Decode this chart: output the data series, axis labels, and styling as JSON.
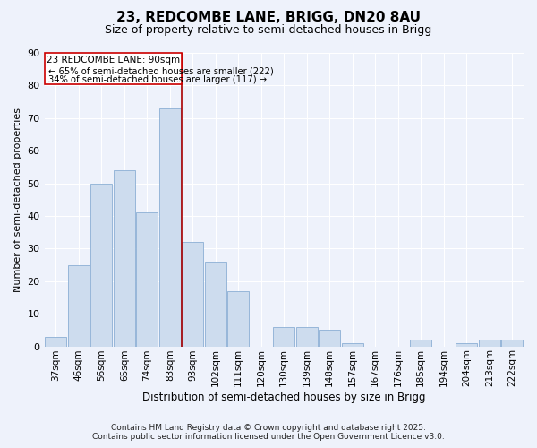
{
  "title": "23, REDCOMBE LANE, BRIGG, DN20 8AU",
  "subtitle": "Size of property relative to semi-detached houses in Brigg",
  "xlabel": "Distribution of semi-detached houses by size in Brigg",
  "ylabel": "Number of semi-detached properties",
  "categories": [
    "37sqm",
    "46sqm",
    "56sqm",
    "65sqm",
    "74sqm",
    "83sqm",
    "93sqm",
    "102sqm",
    "111sqm",
    "120sqm",
    "130sqm",
    "139sqm",
    "148sqm",
    "157sqm",
    "167sqm",
    "176sqm",
    "185sqm",
    "194sqm",
    "204sqm",
    "213sqm",
    "222sqm"
  ],
  "values": [
    3,
    25,
    50,
    54,
    41,
    73,
    32,
    26,
    17,
    0,
    6,
    6,
    5,
    1,
    0,
    0,
    2,
    0,
    1,
    2,
    2
  ],
  "bar_color": "#cddcee",
  "bar_edge_color": "#8bafd4",
  "highlight_index": 6,
  "highlight_line_color": "#aa0000",
  "annotation_box_color": "#ffffff",
  "annotation_box_edge": "#cc0000",
  "annotation_title": "23 REDCOMBE LANE: 90sqm",
  "annotation_line1": "← 65% of semi-detached houses are smaller (222)",
  "annotation_line2": "34% of semi-detached houses are larger (117) →",
  "ylim": [
    0,
    90
  ],
  "yticks": [
    0,
    10,
    20,
    30,
    40,
    50,
    60,
    70,
    80,
    90
  ],
  "background_color": "#eef2fb",
  "grid_color": "#ffffff",
  "footer1": "Contains HM Land Registry data © Crown copyright and database right 2025.",
  "footer2": "Contains public sector information licensed under the Open Government Licence v3.0."
}
